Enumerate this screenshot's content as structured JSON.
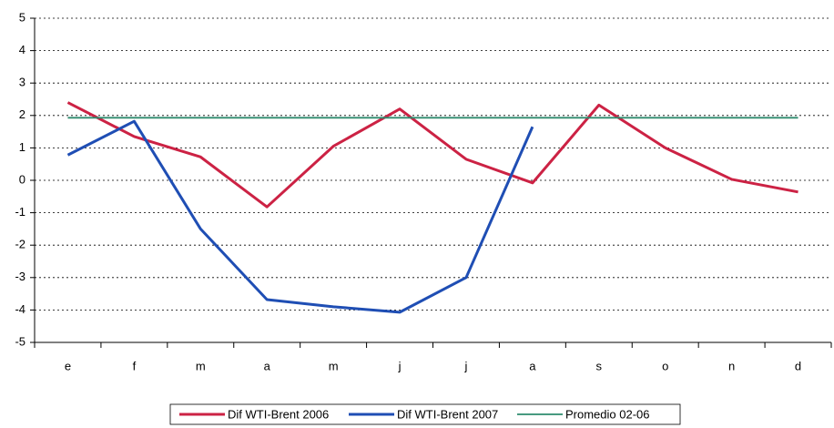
{
  "chart_data": {
    "type": "line",
    "categories": [
      "e",
      "f",
      "m",
      "a",
      "m",
      "j",
      "j",
      "a",
      "s",
      "o",
      "n",
      "d"
    ],
    "series": [
      {
        "name": "Dif WTI-Brent 2006",
        "color": "#cc2244",
        "values": [
          2.4,
          1.35,
          0.72,
          -0.82,
          1.05,
          2.2,
          0.65,
          -0.08,
          2.32,
          1.0,
          0.03,
          -0.36
        ]
      },
      {
        "name": "Dif WTI-Brent 2007",
        "color": "#1f4eb4",
        "values": [
          0.78,
          1.82,
          -1.5,
          -3.68,
          -3.9,
          -4.07,
          -3.0,
          1.65,
          null,
          null,
          null,
          null
        ]
      },
      {
        "name": "Promedio 02-06",
        "color": "#2e8b6e",
        "values": [
          1.93,
          1.93,
          1.93,
          1.93,
          1.93,
          1.93,
          1.93,
          1.93,
          1.93,
          1.93,
          1.93,
          1.93
        ]
      }
    ],
    "ylim": [
      -5,
      5
    ],
    "yticks": [
      -5,
      -4,
      -3,
      -2,
      -1,
      0,
      1,
      2,
      3,
      4,
      5
    ],
    "grid": true
  }
}
